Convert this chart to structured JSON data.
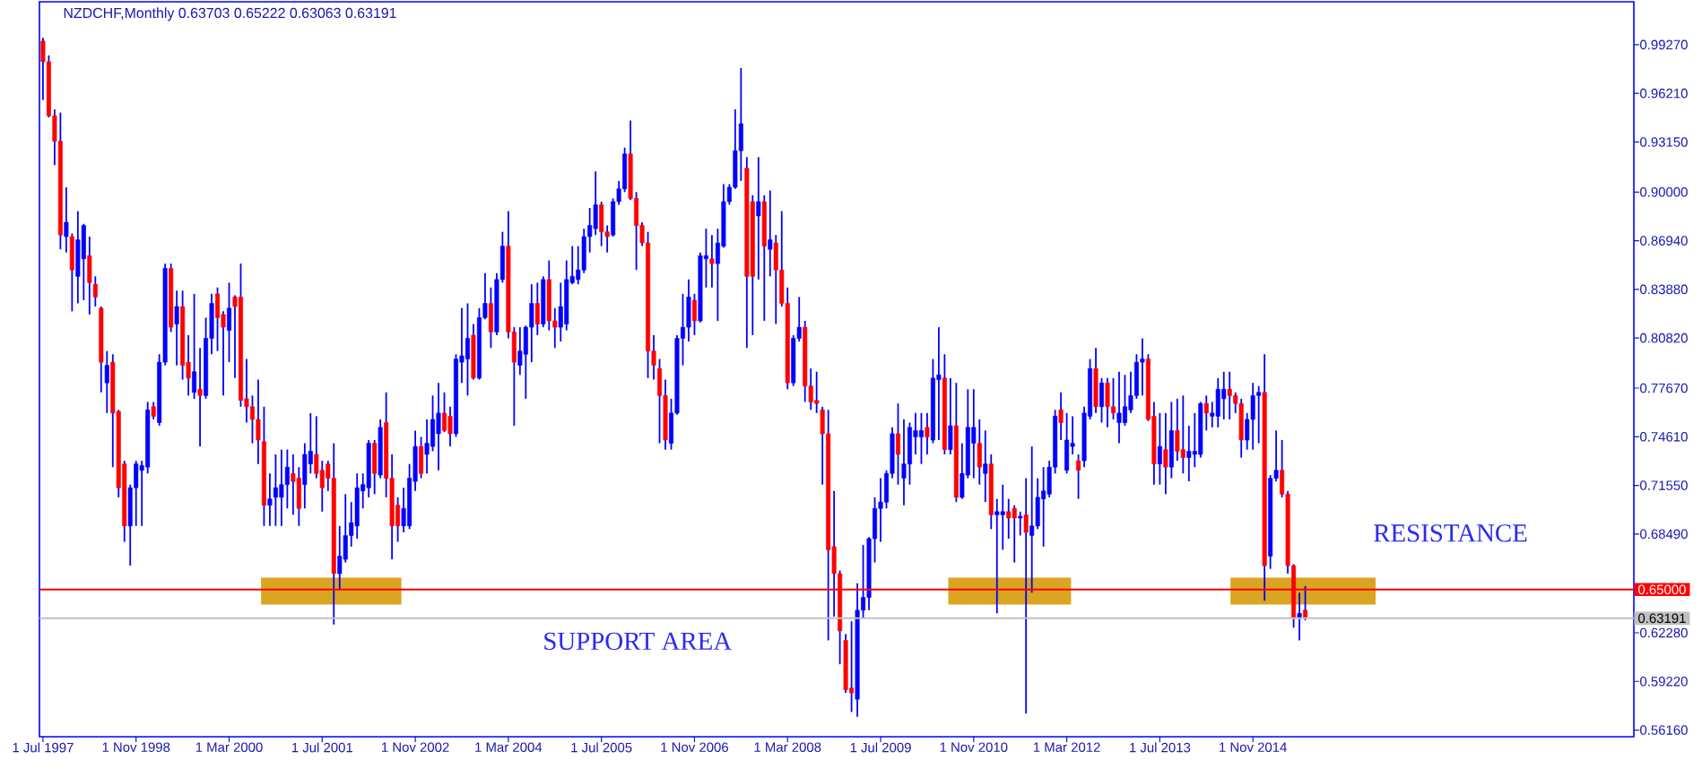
{
  "chart_data": {
    "type": "candlestick",
    "title": "NZDCHF,Monthly  0.63703 0.65222 0.63063 0.63191",
    "color": "#0000ff",
    "x": [
      "1997-07",
      "1997-08",
      "1997-09",
      "1997-10",
      "1997-11",
      "1997-12",
      "1998-01",
      "1998-02",
      "1998-03",
      "1998-04",
      "1998-05",
      "1998-06",
      "1998-07",
      "1998-08",
      "1998-09",
      "1998-10",
      "1998-11",
      "1998-12",
      "1999-01",
      "1999-02",
      "1999-03",
      "1999-04",
      "1999-05",
      "1999-06",
      "1999-07",
      "1999-08",
      "1999-09",
      "1999-10",
      "1999-11",
      "1999-12",
      "2000-01",
      "2000-02",
      "2000-03",
      "2000-04",
      "2000-05",
      "2000-06",
      "2000-07",
      "2000-08",
      "2000-09",
      "2000-10",
      "2000-11",
      "2000-12",
      "2001-01",
      "2001-02",
      "2001-03",
      "2001-04",
      "2001-05",
      "2001-06",
      "2001-07",
      "2001-08",
      "2001-09",
      "2001-10",
      "2001-11",
      "2001-12",
      "2002-01",
      "2002-02",
      "2002-03",
      "2002-04",
      "2002-05",
      "2002-06",
      "2002-07",
      "2002-08",
      "2002-09",
      "2002-10",
      "2002-11",
      "2002-12",
      "2003-01",
      "2003-02",
      "2003-03",
      "2003-04",
      "2003-05",
      "2003-06",
      "2003-07",
      "2003-08",
      "2003-09",
      "2003-10",
      "2003-11",
      "2003-12",
      "2004-01",
      "2004-02",
      "2004-03",
      "2004-04",
      "2004-05",
      "2004-06",
      "2004-07",
      "2004-08",
      "2004-09",
      "2004-10",
      "2004-11",
      "2004-12",
      "2005-01",
      "2005-02",
      "2005-03",
      "2005-04",
      "2005-05",
      "2005-06",
      "2005-07",
      "2005-08",
      "2005-09",
      "2005-10",
      "2005-11",
      "2005-12",
      "2006-01",
      "2006-02",
      "2006-03",
      "2006-04",
      "2006-05",
      "2006-06",
      "2006-07",
      "2006-08",
      "2006-09",
      "2006-10",
      "2006-11",
      "2006-12",
      "2007-01",
      "2007-02",
      "2007-03",
      "2007-04",
      "2007-05",
      "2007-06",
      "2007-07",
      "2007-08",
      "2007-09",
      "2007-10",
      "2007-11",
      "2007-12",
      "2008-01",
      "2008-02",
      "2008-03",
      "2008-04",
      "2008-05",
      "2008-06",
      "2008-07",
      "2008-08",
      "2008-09",
      "2008-10",
      "2008-11",
      "2008-12",
      "2009-01",
      "2009-02",
      "2009-03",
      "2009-04",
      "2009-05",
      "2009-06",
      "2009-07",
      "2009-08",
      "2009-09",
      "2009-10",
      "2009-11",
      "2009-12",
      "2010-01",
      "2010-02",
      "2010-03",
      "2010-04",
      "2010-05",
      "2010-06",
      "2010-07",
      "2010-08",
      "2010-09",
      "2010-10",
      "2010-11",
      "2010-12",
      "2011-01",
      "2011-02",
      "2011-03",
      "2011-04",
      "2011-05",
      "2011-06",
      "2011-07",
      "2011-08",
      "2011-09",
      "2011-10",
      "2011-11",
      "2011-12",
      "2012-01",
      "2012-02",
      "2012-03",
      "2012-04",
      "2012-05",
      "2012-06",
      "2012-07",
      "2012-08",
      "2012-09",
      "2012-10",
      "2012-11",
      "2012-12",
      "2013-01",
      "2013-02",
      "2013-03",
      "2013-04",
      "2013-05",
      "2013-06",
      "2013-07",
      "2013-08",
      "2013-09",
      "2013-10",
      "2013-11",
      "2013-12",
      "2014-01",
      "2014-02",
      "2014-03",
      "2014-04",
      "2014-05",
      "2014-06",
      "2014-07",
      "2014-08",
      "2014-09",
      "2014-10",
      "2014-11",
      "2014-12",
      "2015-01",
      "2015-02",
      "2015-03",
      "2015-04",
      "2015-05",
      "2015-06",
      "2015-07",
      "2015-08"
    ],
    "ohlc": [
      [
        0.995,
        0.997,
        0.958,
        0.982
      ],
      [
        0.982,
        0.986,
        0.947,
        0.948
      ],
      [
        0.948,
        0.952,
        0.917,
        0.932
      ],
      [
        0.932,
        0.95,
        0.864,
        0.873
      ],
      [
        0.872,
        0.903,
        0.862,
        0.881
      ],
      [
        0.872,
        0.874,
        0.825,
        0.851
      ],
      [
        0.847,
        0.888,
        0.83,
        0.87
      ],
      [
        0.858,
        0.88,
        0.832,
        0.879
      ],
      [
        0.86,
        0.872,
        0.823,
        0.843
      ],
      [
        0.842,
        0.847,
        0.828,
        0.834
      ],
      [
        0.827,
        0.828,
        0.774,
        0.793
      ],
      [
        0.78,
        0.8,
        0.761,
        0.791
      ],
      [
        0.793,
        0.798,
        0.727,
        0.761
      ],
      [
        0.762,
        0.763,
        0.708,
        0.714
      ],
      [
        0.729,
        0.731,
        0.68,
        0.69
      ],
      [
        0.69,
        0.716,
        0.665,
        0.714
      ],
      [
        0.714,
        0.731,
        0.69,
        0.729
      ],
      [
        0.725,
        0.731,
        0.69,
        0.728
      ],
      [
        0.727,
        0.768,
        0.723,
        0.763
      ],
      [
        0.765,
        0.768,
        0.757,
        0.759
      ],
      [
        0.755,
        0.798,
        0.753,
        0.793
      ],
      [
        0.793,
        0.855,
        0.791,
        0.852
      ],
      [
        0.852,
        0.855,
        0.812,
        0.815
      ],
      [
        0.817,
        0.838,
        0.791,
        0.828
      ],
      [
        0.828,
        0.838,
        0.782,
        0.791
      ],
      [
        0.793,
        0.81,
        0.772,
        0.783
      ],
      [
        0.774,
        0.836,
        0.77,
        0.787
      ],
      [
        0.776,
        0.802,
        0.74,
        0.772
      ],
      [
        0.772,
        0.821,
        0.77,
        0.808
      ],
      [
        0.808,
        0.836,
        0.798,
        0.83
      ],
      [
        0.836,
        0.84,
        0.8,
        0.821
      ],
      [
        0.823,
        0.825,
        0.772,
        0.815
      ],
      [
        0.813,
        0.843,
        0.793,
        0.827
      ],
      [
        0.834,
        0.835,
        0.783,
        0.828
      ],
      [
        0.834,
        0.855,
        0.765,
        0.769
      ],
      [
        0.77,
        0.795,
        0.755,
        0.765
      ],
      [
        0.765,
        0.772,
        0.742,
        0.757
      ],
      [
        0.757,
        0.782,
        0.729,
        0.744
      ],
      [
        0.743,
        0.765,
        0.69,
        0.703
      ],
      [
        0.703,
        0.723,
        0.69,
        0.707
      ],
      [
        0.708,
        0.735,
        0.69,
        0.714
      ],
      [
        0.708,
        0.738,
        0.69,
        0.716
      ],
      [
        0.716,
        0.738,
        0.701,
        0.727
      ],
      [
        0.723,
        0.735,
        0.697,
        0.718
      ],
      [
        0.72,
        0.727,
        0.69,
        0.701
      ],
      [
        0.716,
        0.742,
        0.701,
        0.735
      ],
      [
        0.729,
        0.761,
        0.723,
        0.737
      ],
      [
        0.735,
        0.759,
        0.72,
        0.723
      ],
      [
        0.725,
        0.731,
        0.699,
        0.714
      ],
      [
        0.729,
        0.731,
        0.712,
        0.72
      ],
      [
        0.72,
        0.742,
        0.628,
        0.66
      ],
      [
        0.66,
        0.69,
        0.65,
        0.671
      ],
      [
        0.669,
        0.71,
        0.667,
        0.684
      ],
      [
        0.684,
        0.705,
        0.677,
        0.692
      ],
      [
        0.69,
        0.723,
        0.682,
        0.714
      ],
      [
        0.712,
        0.723,
        0.701,
        0.716
      ],
      [
        0.714,
        0.744,
        0.708,
        0.742
      ],
      [
        0.742,
        0.744,
        0.71,
        0.723
      ],
      [
        0.722,
        0.757,
        0.72,
        0.752
      ],
      [
        0.755,
        0.774,
        0.708,
        0.72
      ],
      [
        0.72,
        0.735,
        0.669,
        0.69
      ],
      [
        0.703,
        0.708,
        0.68,
        0.69
      ],
      [
        0.69,
        0.714,
        0.686,
        0.701
      ],
      [
        0.69,
        0.729,
        0.688,
        0.72
      ],
      [
        0.718,
        0.75,
        0.712,
        0.74
      ],
      [
        0.74,
        0.746,
        0.72,
        0.723
      ],
      [
        0.735,
        0.757,
        0.723,
        0.742
      ],
      [
        0.74,
        0.772,
        0.737,
        0.757
      ],
      [
        0.748,
        0.78,
        0.725,
        0.761
      ],
      [
        0.761,
        0.774,
        0.749,
        0.75
      ],
      [
        0.759,
        0.765,
        0.74,
        0.748
      ],
      [
        0.748,
        0.798,
        0.746,
        0.795
      ],
      [
        0.793,
        0.827,
        0.78,
        0.797
      ],
      [
        0.795,
        0.83,
        0.772,
        0.808
      ],
      [
        0.81,
        0.817,
        0.782,
        0.783
      ],
      [
        0.783,
        0.827,
        0.782,
        0.821
      ],
      [
        0.821,
        0.849,
        0.82,
        0.83
      ],
      [
        0.83,
        0.84,
        0.802,
        0.812
      ],
      [
        0.812,
        0.849,
        0.81,
        0.845
      ],
      [
        0.845,
        0.875,
        0.843,
        0.866
      ],
      [
        0.866,
        0.888,
        0.808,
        0.812
      ],
      [
        0.812,
        0.815,
        0.753,
        0.793
      ],
      [
        0.791,
        0.815,
        0.785,
        0.8
      ],
      [
        0.798,
        0.816,
        0.77,
        0.815
      ],
      [
        0.815,
        0.842,
        0.793,
        0.83
      ],
      [
        0.83,
        0.843,
        0.81,
        0.817
      ],
      [
        0.817,
        0.847,
        0.815,
        0.845
      ],
      [
        0.845,
        0.857,
        0.813,
        0.819
      ],
      [
        0.819,
        0.827,
        0.802,
        0.815
      ],
      [
        0.815,
        0.843,
        0.806,
        0.828
      ],
      [
        0.817,
        0.857,
        0.813,
        0.845
      ],
      [
        0.843,
        0.866,
        0.842,
        0.847
      ],
      [
        0.845,
        0.866,
        0.842,
        0.851
      ],
      [
        0.851,
        0.877,
        0.849,
        0.872
      ],
      [
        0.872,
        0.89,
        0.862,
        0.879
      ],
      [
        0.877,
        0.913,
        0.873,
        0.892
      ],
      [
        0.892,
        0.894,
        0.866,
        0.875
      ],
      [
        0.875,
        0.879,
        0.862,
        0.872
      ],
      [
        0.873,
        0.896,
        0.872,
        0.894
      ],
      [
        0.894,
        0.907,
        0.892,
        0.902
      ],
      [
        0.902,
        0.928,
        0.9,
        0.924
      ],
      [
        0.924,
        0.945,
        0.895,
        0.896
      ],
      [
        0.896,
        0.9,
        0.851,
        0.879
      ],
      [
        0.879,
        0.881,
        0.866,
        0.868
      ],
      [
        0.868,
        0.875,
        0.783,
        0.8
      ],
      [
        0.8,
        0.81,
        0.782,
        0.791
      ],
      [
        0.789,
        0.795,
        0.742,
        0.772
      ],
      [
        0.772,
        0.782,
        0.738,
        0.744
      ],
      [
        0.742,
        0.77,
        0.738,
        0.761
      ],
      [
        0.761,
        0.81,
        0.76,
        0.808
      ],
      [
        0.808,
        0.836,
        0.791,
        0.815
      ],
      [
        0.815,
        0.845,
        0.806,
        0.834
      ],
      [
        0.832,
        0.836,
        0.81,
        0.819
      ],
      [
        0.819,
        0.862,
        0.818,
        0.86
      ],
      [
        0.858,
        0.877,
        0.84,
        0.86
      ],
      [
        0.858,
        0.873,
        0.84,
        0.855
      ],
      [
        0.855,
        0.877,
        0.819,
        0.868
      ],
      [
        0.866,
        0.905,
        0.865,
        0.894
      ],
      [
        0.894,
        0.905,
        0.892,
        0.903
      ],
      [
        0.903,
        0.952,
        0.902,
        0.926
      ],
      [
        0.926,
        0.978,
        0.907,
        0.943
      ],
      [
        0.915,
        0.922,
        0.802,
        0.847
      ],
      [
        0.894,
        0.898,
        0.81,
        0.847
      ],
      [
        0.885,
        0.922,
        0.845,
        0.894
      ],
      [
        0.894,
        0.898,
        0.819,
        0.866
      ],
      [
        0.864,
        0.901,
        0.847,
        0.87
      ],
      [
        0.868,
        0.873,
        0.817,
        0.851
      ],
      [
        0.851,
        0.888,
        0.828,
        0.83
      ],
      [
        0.83,
        0.84,
        0.776,
        0.78
      ],
      [
        0.78,
        0.81,
        0.778,
        0.808
      ],
      [
        0.808,
        0.834,
        0.806,
        0.815
      ],
      [
        0.815,
        0.819,
        0.768,
        0.778
      ],
      [
        0.778,
        0.789,
        0.763,
        0.768
      ],
      [
        0.769,
        0.787,
        0.761,
        0.767
      ],
      [
        0.763,
        0.765,
        0.716,
        0.748
      ],
      [
        0.748,
        0.763,
        0.618,
        0.675
      ],
      [
        0.677,
        0.712,
        0.633,
        0.66
      ],
      [
        0.66,
        0.662,
        0.603,
        0.624
      ],
      [
        0.618,
        0.622,
        0.585,
        0.587
      ],
      [
        0.588,
        0.63,
        0.573,
        0.585
      ],
      [
        0.581,
        0.654,
        0.57,
        0.637
      ],
      [
        0.637,
        0.678,
        0.632,
        0.645
      ],
      [
        0.645,
        0.683,
        0.637,
        0.682
      ],
      [
        0.682,
        0.708,
        0.667,
        0.701
      ],
      [
        0.701,
        0.72,
        0.68,
        0.705
      ],
      [
        0.705,
        0.725,
        0.701,
        0.723
      ],
      [
        0.723,
        0.752,
        0.72,
        0.748
      ],
      [
        0.748,
        0.767,
        0.716,
        0.735
      ],
      [
        0.72,
        0.757,
        0.703,
        0.729
      ],
      [
        0.729,
        0.755,
        0.716,
        0.752
      ],
      [
        0.746,
        0.761,
        0.735,
        0.75
      ],
      [
        0.746,
        0.761,
        0.729,
        0.75
      ],
      [
        0.752,
        0.761,
        0.735,
        0.746
      ],
      [
        0.744,
        0.795,
        0.742,
        0.783
      ],
      [
        0.782,
        0.815,
        0.744,
        0.785
      ],
      [
        0.783,
        0.798,
        0.735,
        0.738
      ],
      [
        0.738,
        0.783,
        0.735,
        0.753
      ],
      [
        0.753,
        0.78,
        0.705,
        0.708
      ],
      [
        0.708,
        0.742,
        0.707,
        0.723
      ],
      [
        0.722,
        0.776,
        0.72,
        0.752
      ],
      [
        0.742,
        0.776,
        0.72,
        0.752
      ],
      [
        0.742,
        0.757,
        0.716,
        0.727
      ],
      [
        0.723,
        0.75,
        0.705,
        0.729
      ],
      [
        0.729,
        0.735,
        0.688,
        0.697
      ],
      [
        0.697,
        0.707,
        0.635,
        0.699
      ],
      [
        0.697,
        0.716,
        0.675,
        0.699
      ],
      [
        0.699,
        0.707,
        0.682,
        0.695
      ],
      [
        0.701,
        0.703,
        0.667,
        0.695
      ],
      [
        0.695,
        0.699,
        0.684,
        0.696
      ],
      [
        0.697,
        0.72,
        0.572,
        0.686
      ],
      [
        0.684,
        0.74,
        0.648,
        0.69
      ],
      [
        0.69,
        0.72,
        0.688,
        0.708
      ],
      [
        0.707,
        0.727,
        0.677,
        0.712
      ],
      [
        0.71,
        0.731,
        0.708,
        0.727
      ],
      [
        0.727,
        0.763,
        0.723,
        0.759
      ],
      [
        0.763,
        0.774,
        0.744,
        0.755
      ],
      [
        0.725,
        0.761,
        0.723,
        0.744
      ],
      [
        0.74,
        0.759,
        0.735,
        0.742
      ],
      [
        0.731,
        0.735,
        0.707,
        0.725
      ],
      [
        0.731,
        0.765,
        0.727,
        0.761
      ],
      [
        0.759,
        0.795,
        0.757,
        0.789
      ],
      [
        0.789,
        0.802,
        0.761,
        0.765
      ],
      [
        0.765,
        0.783,
        0.755,
        0.78
      ],
      [
        0.78,
        0.783,
        0.752,
        0.765
      ],
      [
        0.765,
        0.783,
        0.757,
        0.761
      ],
      [
        0.755,
        0.787,
        0.742,
        0.761
      ],
      [
        0.755,
        0.785,
        0.753,
        0.765
      ],
      [
        0.763,
        0.787,
        0.761,
        0.772
      ],
      [
        0.772,
        0.798,
        0.77,
        0.793
      ],
      [
        0.793,
        0.808,
        0.772,
        0.795
      ],
      [
        0.795,
        0.798,
        0.756,
        0.757
      ],
      [
        0.759,
        0.768,
        0.716,
        0.729
      ],
      [
        0.729,
        0.761,
        0.716,
        0.74
      ],
      [
        0.738,
        0.761,
        0.71,
        0.727
      ],
      [
        0.727,
        0.768,
        0.72,
        0.75
      ],
      [
        0.75,
        0.77,
        0.731,
        0.737
      ],
      [
        0.738,
        0.772,
        0.723,
        0.733
      ],
      [
        0.733,
        0.753,
        0.718,
        0.737
      ],
      [
        0.735,
        0.761,
        0.727,
        0.737
      ],
      [
        0.735,
        0.768,
        0.733,
        0.767
      ],
      [
        0.767,
        0.772,
        0.75,
        0.761
      ],
      [
        0.759,
        0.768,
        0.752,
        0.761
      ],
      [
        0.759,
        0.783,
        0.752,
        0.776
      ],
      [
        0.77,
        0.787,
        0.757,
        0.776
      ],
      [
        0.776,
        0.787,
        0.757,
        0.772
      ],
      [
        0.772,
        0.774,
        0.761,
        0.767
      ],
      [
        0.767,
        0.77,
        0.733,
        0.744
      ],
      [
        0.744,
        0.761,
        0.738,
        0.757
      ],
      [
        0.757,
        0.78,
        0.738,
        0.772
      ],
      [
        0.772,
        0.778,
        0.742,
        0.774
      ],
      [
        0.774,
        0.798,
        0.643,
        0.665
      ],
      [
        0.671,
        0.722,
        0.663,
        0.72
      ],
      [
        0.72,
        0.75,
        0.718,
        0.725
      ],
      [
        0.725,
        0.744,
        0.708,
        0.71
      ],
      [
        0.71,
        0.712,
        0.66,
        0.665
      ],
      [
        0.665,
        0.666,
        0.626,
        0.632
      ],
      [
        0.632,
        0.648,
        0.618,
        0.635
      ],
      [
        0.63703,
        0.65222,
        0.63063,
        0.63191
      ]
    ],
    "colors": [
      "#ff0000",
      "#ff0000",
      "#ff0000",
      "#ff0000",
      "#0000ff",
      "#ff0000",
      "#0000ff",
      "#0000ff",
      "#ff0000",
      "#ff0000",
      "#ff0000",
      "#0000ff",
      "#ff0000",
      "#ff0000",
      "#ff0000",
      "#0000ff",
      "#0000ff",
      "#0000ff",
      "#0000ff",
      "#ff0000",
      "#0000ff",
      "#0000ff",
      "#ff0000",
      "#0000ff",
      "#ff0000",
      "#ff0000",
      "#0000ff",
      "#ff0000",
      "#0000ff",
      "#0000ff",
      "#ff0000",
      "#ff0000",
      "#0000ff",
      "#ff0000",
      "#ff0000",
      "#ff0000",
      "#ff0000",
      "#ff0000",
      "#ff0000",
      "#0000ff",
      "#0000ff",
      "#0000ff",
      "#0000ff",
      "#ff0000",
      "#ff0000",
      "#0000ff",
      "#0000ff",
      "#ff0000",
      "#ff0000",
      "#ff0000",
      "#ff0000",
      "#0000ff",
      "#0000ff",
      "#0000ff",
      "#0000ff",
      "#0000ff",
      "#0000ff",
      "#ff0000",
      "#0000ff",
      "#ff0000",
      "#ff0000",
      "#ff0000",
      "#0000ff",
      "#0000ff",
      "#0000ff",
      "#ff0000",
      "#0000ff",
      "#0000ff",
      "#0000ff",
      "#ff0000",
      "#ff0000",
      "#0000ff",
      "#0000ff",
      "#0000ff",
      "#ff0000",
      "#0000ff",
      "#0000ff",
      "#ff0000",
      "#0000ff",
      "#0000ff",
      "#ff0000",
      "#ff0000",
      "#0000ff",
      "#0000ff",
      "#0000ff",
      "#ff0000",
      "#0000ff",
      "#ff0000",
      "#ff0000",
      "#0000ff",
      "#0000ff",
      "#0000ff",
      "#0000ff",
      "#0000ff",
      "#0000ff",
      "#0000ff",
      "#ff0000",
      "#ff0000",
      "#0000ff",
      "#0000ff",
      "#0000ff",
      "#ff0000",
      "#ff0000",
      "#ff0000",
      "#ff0000",
      "#ff0000",
      "#ff0000",
      "#ff0000",
      "#0000ff",
      "#0000ff",
      "#0000ff",
      "#0000ff",
      "#ff0000",
      "#0000ff",
      "#0000ff",
      "#ff0000",
      "#0000ff",
      "#0000ff",
      "#0000ff",
      "#0000ff",
      "#0000ff",
      "#ff0000",
      "#ff0000",
      "#0000ff",
      "#ff0000",
      "#0000ff",
      "#ff0000",
      "#ff0000",
      "#ff0000",
      "#0000ff",
      "#0000ff",
      "#ff0000",
      "#ff0000",
      "#ff0000",
      "#ff0000",
      "#ff0000",
      "#ff0000",
      "#ff0000",
      "#ff0000",
      "#ff0000",
      "#0000ff",
      "#0000ff",
      "#0000ff",
      "#0000ff",
      "#0000ff",
      "#0000ff",
      "#0000ff",
      "#ff0000",
      "#0000ff",
      "#0000ff",
      "#0000ff",
      "#0000ff",
      "#ff0000",
      "#0000ff",
      "#0000ff",
      "#ff0000",
      "#0000ff",
      "#ff0000",
      "#0000ff",
      "#0000ff",
      "#0000ff",
      "#ff0000",
      "#0000ff",
      "#ff0000",
      "#0000ff",
      "#0000ff",
      "#ff0000",
      "#ff0000",
      "#0000ff",
      "#ff0000",
      "#0000ff",
      "#0000ff",
      "#0000ff",
      "#0000ff",
      "#0000ff",
      "#ff0000",
      "#0000ff",
      "#0000ff",
      "#ff0000",
      "#0000ff",
      "#0000ff",
      "#ff0000",
      "#0000ff",
      "#ff0000",
      "#ff0000",
      "#0000ff",
      "#0000ff",
      "#0000ff",
      "#0000ff",
      "#0000ff",
      "#ff0000",
      "#ff0000",
      "#0000ff",
      "#ff0000",
      "#0000ff",
      "#ff0000",
      "#ff0000",
      "#0000ff",
      "#0000ff",
      "#0000ff",
      "#ff0000",
      "#0000ff",
      "#0000ff",
      "#0000ff",
      "#ff0000",
      "#ff0000",
      "#ff0000",
      "#0000ff",
      "#0000ff",
      "#0000ff",
      "#ff0000",
      "#0000ff",
      "#0000ff",
      "#ff0000",
      "#ff0000",
      "#ff0000",
      "#0000ff",
      "#ff0000"
    ],
    "xlim": [
      "1997-06-13",
      "2020-04-16"
    ],
    "ylim": [
      0.5574,
      1.0197
    ],
    "xticks": [
      {
        "value": "1997-07",
        "label": "1 Jul 1997"
      },
      {
        "value": "1998-11",
        "label": "1 Nov 1998"
      },
      {
        "value": "2000-03",
        "label": "1 Mar 2000"
      },
      {
        "value": "2001-07",
        "label": "1 Jul 2001"
      },
      {
        "value": "2002-11",
        "label": "1 Nov 2002"
      },
      {
        "value": "2004-03",
        "label": "1 Mar 2004"
      },
      {
        "value": "2005-07",
        "label": "1 Jul 2005"
      },
      {
        "value": "2006-11",
        "label": "1 Nov 2006"
      },
      {
        "value": "2008-03",
        "label": "1 Mar 2008"
      },
      {
        "value": "2009-07",
        "label": "1 Jul 2009"
      },
      {
        "value": "2010-11",
        "label": "1 Nov 2010"
      },
      {
        "value": "2012-03",
        "label": "1 Mar 2012"
      },
      {
        "value": "2013-07",
        "label": "1 Jul 2013"
      },
      {
        "value": "2014-11",
        "label": "1 Nov 2014"
      }
    ],
    "yticks": [
      {
        "value": 0.9927,
        "label": "0.99270"
      },
      {
        "value": 0.9621,
        "label": "0.96210"
      },
      {
        "value": 0.9315,
        "label": "0.93150"
      },
      {
        "value": 0.9,
        "label": "0.90000"
      },
      {
        "value": 0.8694,
        "label": "0.86940"
      },
      {
        "value": 0.8388,
        "label": "0.83880"
      },
      {
        "value": 0.8082,
        "label": "0.80820"
      },
      {
        "value": 0.7767,
        "label": "0.77670"
      },
      {
        "value": 0.7461,
        "label": "0.74610"
      },
      {
        "value": 0.7155,
        "label": "0.71550"
      },
      {
        "value": 0.6849,
        "label": "0.68490"
      },
      {
        "value": 0.6228,
        "label": "0.62280"
      },
      {
        "value": 0.5922,
        "label": "0.59220"
      },
      {
        "value": 0.5616,
        "label": "0.56160"
      }
    ],
    "ref_lines": [
      {
        "axis": "y",
        "value": 0.65,
        "label": "0.65000",
        "color": "#ff0000"
      },
      {
        "axis": "y",
        "value": 0.63191,
        "label": "0.63191",
        "color": "#c0c0c0"
      }
    ],
    "annotations": [
      "SUPPORT AREA",
      "RESISTANCE"
    ]
  }
}
